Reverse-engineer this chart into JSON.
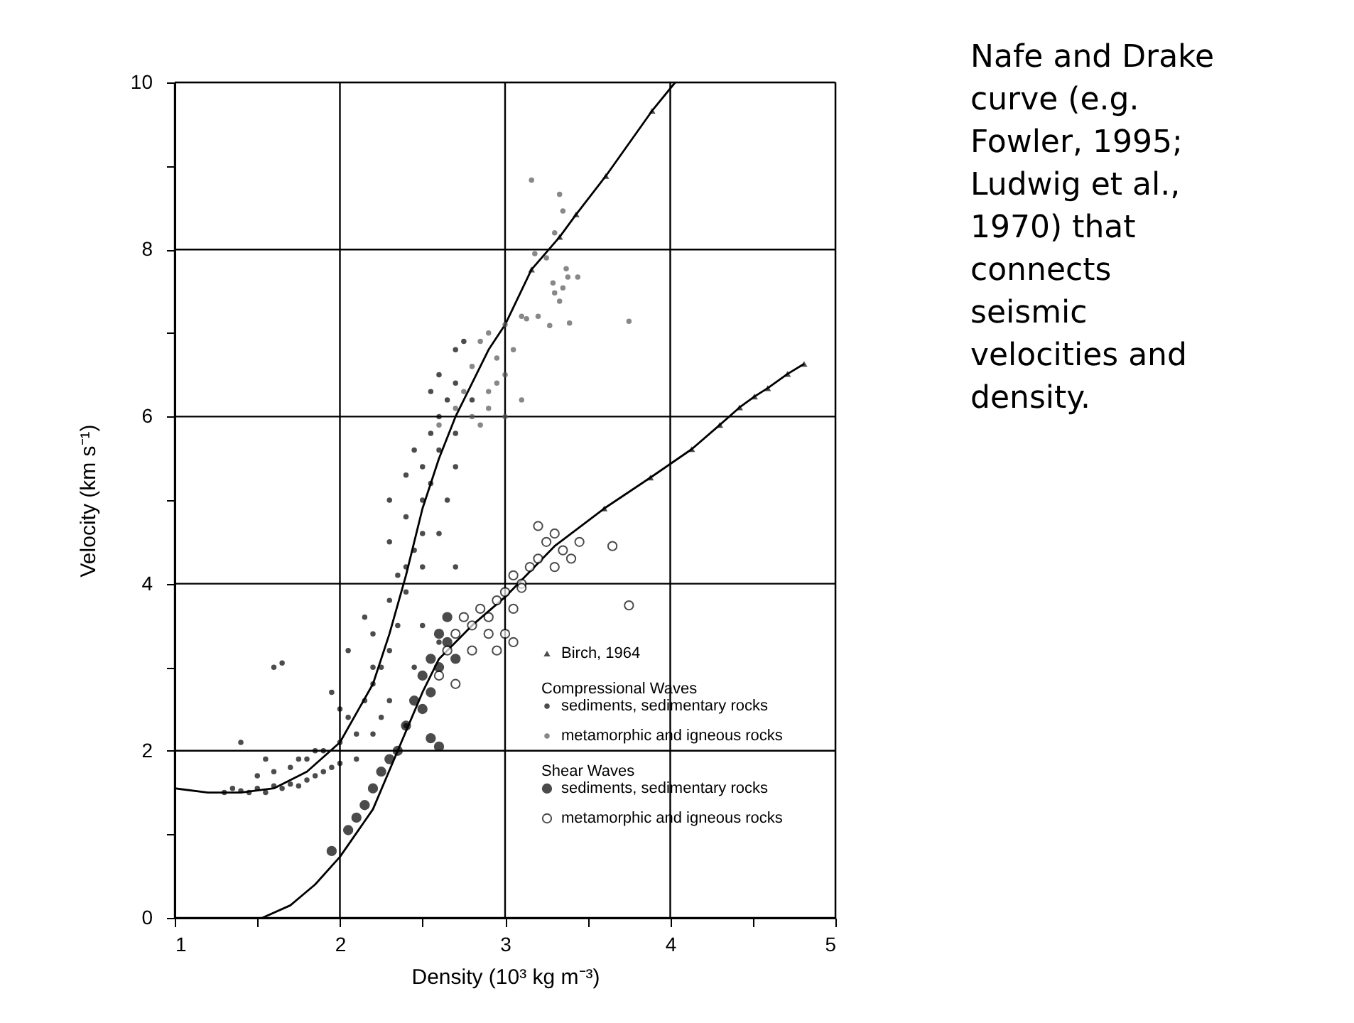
{
  "chart_data": {
    "type": "scatter",
    "xlabel": "Density (10³ kg m⁻³)",
    "ylabel": "Velocity (km s⁻¹)",
    "xlim": [
      1,
      5
    ],
    "ylim": [
      0,
      10
    ],
    "xticks": [
      1,
      {
        "value": 1.5,
        "label": null
      },
      2,
      {
        "value": 2.5,
        "label": null
      },
      3,
      {
        "value": 3.5,
        "label": null
      },
      4,
      {
        "value": 4.5,
        "label": null
      },
      5
    ],
    "yticks": [
      0,
      {
        "value": 1,
        "label": null
      },
      2,
      {
        "value": 3,
        "label": null
      },
      4,
      {
        "value": 5,
        "label": null
      },
      6,
      {
        "value": 7,
        "label": null
      },
      8,
      {
        "value": 9,
        "label": null
      },
      10
    ],
    "grid": true,
    "legend": "bottom right",
    "annotations": [
      "Nafe and Drake curve (e.g. Fowler, 1995; Ludwig et al., 1970) that connects seismic velocities and density.",
      "Compressional Waves",
      "Shear Waves"
    ],
    "series": [
      {
        "type": "line",
        "color": "#000000",
        "x": [
          1.0,
          1.2,
          1.4,
          1.6,
          1.8,
          2.0,
          2.2,
          2.3,
          2.4,
          2.5,
          2.6,
          2.7,
          2.8,
          2.9,
          3.0,
          3.16,
          3.33,
          3.43,
          3.61,
          3.89,
          4.03
        ],
        "values": [
          1.55,
          1.5,
          1.5,
          1.55,
          1.75,
          2.1,
          2.8,
          3.4,
          4.1,
          4.9,
          5.5,
          6.0,
          6.4,
          6.8,
          7.1,
          7.76,
          8.15,
          8.42,
          8.88,
          9.66,
          10
        ]
      },
      {
        "type": "line",
        "color": "#000000",
        "x": [
          1.53,
          1.7,
          1.85,
          2.0,
          2.2,
          2.35,
          2.5,
          2.6,
          2.8,
          3.0,
          3.3,
          3.6,
          3.88,
          4.13,
          4.3,
          4.42,
          4.51,
          4.59,
          4.71,
          4.81
        ],
        "values": [
          0,
          0.15,
          0.4,
          0.73,
          1.3,
          2.0,
          2.7,
          3.1,
          3.5,
          3.84,
          4.45,
          4.9,
          5.27,
          5.61,
          5.9,
          6.11,
          6.24,
          6.34,
          6.51,
          6.63
        ]
      },
      {
        "type": "scatter",
        "name": "Birch, 1964",
        "color": "#000000",
        "marker": "triangle",
        "x": [
          3.16,
          3.33,
          3.43,
          3.61,
          3.89,
          3.6,
          3.88,
          4.13,
          4.3,
          4.42,
          4.51,
          4.59,
          4.71,
          4.81
        ],
        "values": [
          7.76,
          8.15,
          8.42,
          8.88,
          9.66,
          4.9,
          5.27,
          5.61,
          5.9,
          6.11,
          6.24,
          6.34,
          6.51,
          6.63
        ]
      },
      {
        "type": "scatter",
        "name": "sediments, sedimentary rocks",
        "color": "#000000",
        "marker": "circle",
        "x": [
          1.3,
          1.35,
          1.4,
          1.45,
          1.5,
          1.55,
          1.6,
          1.65,
          1.7,
          1.75,
          1.8,
          1.85,
          1.9,
          1.95,
          2.0,
          1.5,
          1.6,
          1.7,
          1.8,
          1.9,
          2.0,
          2.1,
          2.05,
          2.15,
          2.2,
          2.25,
          2.3,
          2.2,
          2.35,
          2.3,
          2.4,
          2.4,
          2.45,
          2.5,
          2.4,
          2.5,
          2.55,
          2.5,
          2.6,
          2.55,
          2.6,
          2.65,
          2.7,
          2.6,
          2.7,
          2.65,
          2.7,
          2.1,
          2.2,
          2.4,
          2.3,
          2.45,
          1.4,
          1.6,
          1.65,
          1.55,
          1.95,
          2.05,
          2.15,
          2.3,
          2.45,
          2.55,
          2.75,
          2.35,
          2.5,
          2.6,
          2.7,
          2.8,
          2.2,
          2.25,
          2.0,
          1.85,
          1.75,
          2.3,
          2.4,
          2.5,
          2.6,
          2.7
        ],
        "values": [
          1.5,
          1.55,
          1.52,
          1.5,
          1.55,
          1.5,
          1.58,
          1.55,
          1.6,
          1.58,
          1.65,
          1.7,
          1.75,
          1.8,
          1.85,
          1.7,
          1.75,
          1.8,
          1.9,
          2.0,
          2.1,
          2.2,
          2.4,
          2.6,
          2.8,
          3.0,
          3.2,
          3.4,
          3.5,
          3.8,
          3.9,
          4.2,
          4.4,
          4.6,
          4.8,
          5.0,
          5.2,
          5.4,
          5.6,
          5.8,
          6.0,
          6.2,
          6.4,
          6.5,
          6.8,
          5.0,
          5.4,
          1.9,
          2.2,
          2.3,
          2.6,
          3.0,
          2.1,
          3.0,
          3.05,
          1.9,
          2.7,
          3.2,
          3.6,
          4.5,
          5.6,
          6.3,
          6.9,
          4.1,
          4.2,
          4.6,
          5.8,
          6.2,
          3.0,
          2.4,
          2.5,
          2.0,
          1.9,
          5.0,
          5.3,
          3.5,
          3.3,
          4.2
        ]
      },
      {
        "type": "scatter",
        "name": "metamorphic and igneous rocks",
        "color": "#555555",
        "marker": "circle",
        "x": [
          2.6,
          2.7,
          2.75,
          2.8,
          2.85,
          2.9,
          2.95,
          3.0,
          2.8,
          2.9,
          3.0,
          3.05,
          3.1,
          3.16,
          3.33,
          3.35,
          3.18,
          3.37,
          3.38,
          3.44,
          3.29,
          3.35,
          3.3,
          3.33,
          3.13,
          3.2,
          3.27,
          3.39,
          3.75,
          2.9,
          3.0,
          2.85,
          2.95,
          3.1,
          3.25,
          3.3
        ],
        "values": [
          5.9,
          6.1,
          6.3,
          6.6,
          6.9,
          7.0,
          6.7,
          7.1,
          6.0,
          6.3,
          6.5,
          6.8,
          7.2,
          8.83,
          8.66,
          8.46,
          7.95,
          7.77,
          7.67,
          7.67,
          7.6,
          7.54,
          7.48,
          7.38,
          7.17,
          7.2,
          7.09,
          7.12,
          7.14,
          6.1,
          6.0,
          5.9,
          6.4,
          6.2,
          7.9,
          8.2
        ]
      },
      {
        "type": "scatter",
        "name": "sediments, sedimentary rocks",
        "color": "#000000",
        "marker": "circle",
        "x": [
          1.95,
          2.05,
          2.15,
          2.2,
          2.25,
          2.35,
          2.4,
          2.5,
          2.55,
          2.55,
          2.6,
          2.45,
          2.6,
          2.65,
          2.65,
          2.7,
          2.1,
          2.3,
          2.55,
          2.6,
          2.5
        ],
        "values": [
          0.8,
          1.05,
          1.35,
          1.55,
          1.75,
          2.0,
          2.3,
          2.5,
          2.7,
          2.15,
          2.05,
          2.6,
          3.0,
          3.3,
          3.6,
          3.1,
          1.2,
          1.9,
          3.1,
          3.4,
          2.9
        ]
      },
      {
        "type": "scatter",
        "name": "metamorphic and igneous rocks",
        "color": "#ffffff",
        "marker": "circle",
        "x": [
          2.6,
          2.65,
          2.7,
          2.75,
          2.8,
          2.85,
          2.9,
          2.95,
          3.0,
          3.05,
          3.1,
          3.0,
          3.05,
          2.9,
          3.15,
          3.2,
          3.25,
          3.3,
          3.35,
          3.4,
          3.3,
          3.45,
          3.65,
          3.2,
          3.75,
          3.1,
          2.7,
          2.8,
          2.95,
          3.05
        ],
        "values": [
          2.9,
          3.2,
          3.4,
          3.6,
          3.5,
          3.7,
          3.6,
          3.8,
          3.9,
          3.7,
          4.0,
          3.4,
          3.3,
          3.4,
          4.2,
          4.3,
          4.5,
          4.6,
          4.4,
          4.3,
          4.2,
          4.5,
          4.45,
          4.69,
          3.74,
          3.95,
          2.8,
          3.2,
          3.2,
          4.1
        ]
      }
    ]
  }
}
